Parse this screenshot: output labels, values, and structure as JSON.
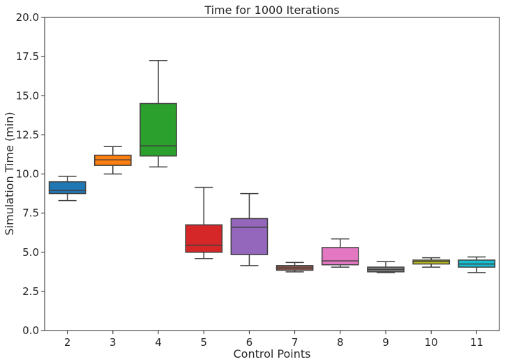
{
  "chart_data": {
    "type": "box",
    "title": "Time for 1000 Iterations",
    "xlabel": "Control Points",
    "ylabel": "Simulation Time (min)",
    "ylim": [
      0,
      20
    ],
    "yticks": [
      "0.0",
      "2.5",
      "5.0",
      "7.5",
      "10.0",
      "12.5",
      "15.0",
      "17.5",
      "20.0"
    ],
    "grid": false,
    "categories": [
      "2",
      "3",
      "4",
      "5",
      "6",
      "7",
      "8",
      "9",
      "10",
      "11"
    ],
    "boxes": [
      {
        "category": "2",
        "color": "#1f77b4",
        "whisker_low": 8.3,
        "q1": 8.75,
        "median": 8.95,
        "q3": 9.5,
        "whisker_high": 9.85
      },
      {
        "category": "3",
        "color": "#ff7f0e",
        "whisker_low": 10.0,
        "q1": 10.55,
        "median": 10.9,
        "q3": 11.2,
        "whisker_high": 11.75
      },
      {
        "category": "4",
        "color": "#2ca02c",
        "whisker_low": 10.45,
        "q1": 11.15,
        "median": 11.8,
        "q3": 14.5,
        "whisker_high": 17.25
      },
      {
        "category": "5",
        "color": "#d62728",
        "whisker_low": 4.6,
        "q1": 5.0,
        "median": 5.45,
        "q3": 6.75,
        "whisker_high": 9.15
      },
      {
        "category": "6",
        "color": "#9467bd",
        "whisker_low": 4.15,
        "q1": 4.85,
        "median": 6.6,
        "q3": 7.15,
        "whisker_high": 8.75
      },
      {
        "category": "7",
        "color": "#8c564b",
        "whisker_low": 3.75,
        "q1": 3.85,
        "median": 4.0,
        "q3": 4.15,
        "whisker_high": 4.35
      },
      {
        "category": "8",
        "color": "#e377c2",
        "whisker_low": 4.05,
        "q1": 4.2,
        "median": 4.45,
        "q3": 5.3,
        "whisker_high": 5.85
      },
      {
        "category": "9",
        "color": "#7f7f7f",
        "whisker_low": 3.7,
        "q1": 3.75,
        "median": 3.9,
        "q3": 4.05,
        "whisker_high": 4.4
      },
      {
        "category": "10",
        "color": "#bcbd22",
        "whisker_low": 4.05,
        "q1": 4.25,
        "median": 4.4,
        "q3": 4.5,
        "whisker_high": 4.65
      },
      {
        "category": "11",
        "color": "#17becf",
        "whisker_low": 3.7,
        "q1": 4.05,
        "median": 4.25,
        "q3": 4.5,
        "whisker_high": 4.7
      }
    ]
  }
}
